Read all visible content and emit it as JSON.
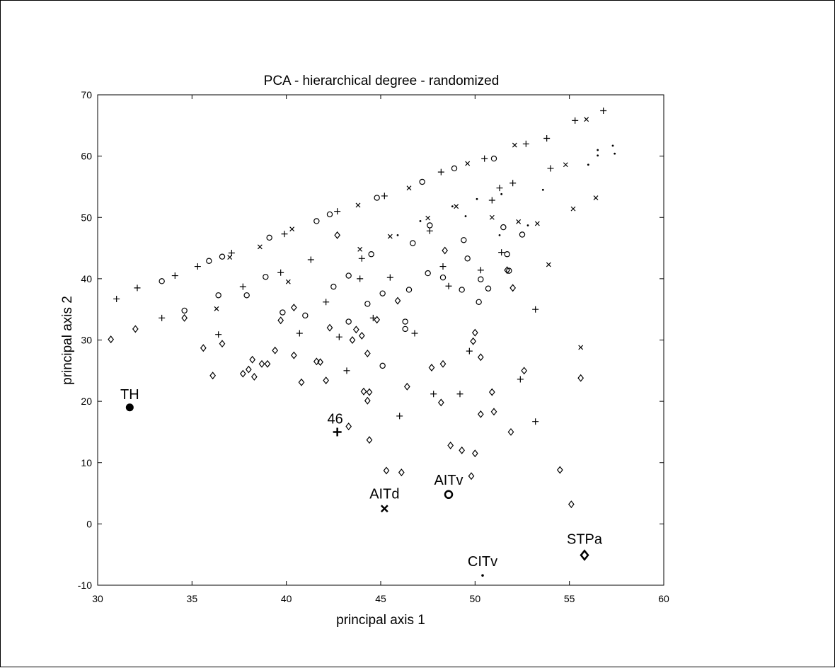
{
  "chart_data": {
    "type": "scatter",
    "title": "PCA - hierarchical degree - randomized",
    "xlabel": "principal axis 1",
    "ylabel": "principal axis 2",
    "xlim": [
      30,
      60
    ],
    "ylim": [
      -10,
      70
    ],
    "xticks": [
      30,
      35,
      40,
      45,
      50,
      55,
      60
    ],
    "yticks": [
      -10,
      0,
      10,
      20,
      30,
      40,
      50,
      60,
      70
    ],
    "xtick_labels": [
      "30",
      "35",
      "40",
      "45",
      "50",
      "55",
      "60"
    ],
    "ytick_labels": [
      "-10",
      "0",
      "10",
      "20",
      "30",
      "40",
      "50",
      "60",
      "70"
    ],
    "grid": false,
    "highlighted": [
      {
        "label": "TH",
        "x": 31.7,
        "y": 19.0,
        "marker": "dot"
      },
      {
        "label": "46",
        "x": 42.7,
        "y": 15.0,
        "marker": "plus"
      },
      {
        "label": "AITd",
        "x": 45.2,
        "y": 2.5,
        "marker": "x"
      },
      {
        "label": "AITv",
        "x": 48.6,
        "y": 4.8,
        "marker": "circle"
      },
      {
        "label": "CITv",
        "x": 50.4,
        "y": -8.4,
        "marker": "point"
      },
      {
        "label": "STPa",
        "x": 55.8,
        "y": -5.1,
        "marker": "diamond"
      }
    ],
    "series": [
      {
        "marker": "plus",
        "points": [
          [
            31.0,
            36.7
          ],
          [
            32.1,
            38.5
          ],
          [
            33.4,
            33.6
          ],
          [
            35.3,
            42.0
          ],
          [
            36.4,
            30.9
          ],
          [
            37.7,
            38.7
          ],
          [
            39.7,
            41.0
          ],
          [
            40.7,
            31.1
          ],
          [
            41.3,
            43.1
          ],
          [
            42.1,
            36.2
          ],
          [
            42.8,
            30.5
          ],
          [
            43.2,
            25.0
          ],
          [
            43.9,
            40.0
          ],
          [
            44.0,
            43.3
          ],
          [
            44.6,
            33.6
          ],
          [
            45.5,
            40.2
          ],
          [
            46.0,
            17.6
          ],
          [
            46.8,
            31.1
          ],
          [
            47.6,
            47.8
          ],
          [
            47.8,
            21.2
          ],
          [
            48.3,
            42.0
          ],
          [
            48.6,
            38.8
          ],
          [
            49.2,
            21.2
          ],
          [
            49.7,
            28.2
          ],
          [
            50.3,
            41.4
          ],
          [
            50.9,
            52.8
          ],
          [
            51.4,
            44.3
          ],
          [
            51.3,
            54.8
          ],
          [
            52.4,
            23.6
          ],
          [
            53.2,
            35.0
          ],
          [
            53.2,
            16.7
          ],
          [
            52.0,
            55.6
          ],
          [
            54.0,
            58.0
          ],
          [
            55.3,
            65.8
          ],
          [
            56.8,
            67.4
          ],
          [
            53.8,
            62.9
          ],
          [
            52.7,
            62.0
          ],
          [
            50.5,
            59.6
          ],
          [
            48.2,
            57.4
          ],
          [
            45.2,
            53.5
          ],
          [
            42.7,
            51.0
          ],
          [
            39.9,
            47.3
          ],
          [
            37.1,
            44.2
          ],
          [
            34.1,
            40.5
          ]
        ]
      },
      {
        "marker": "circle",
        "points": [
          [
            33.4,
            39.6
          ],
          [
            34.6,
            34.8
          ],
          [
            36.4,
            37.3
          ],
          [
            37.9,
            37.3
          ],
          [
            38.9,
            40.3
          ],
          [
            39.8,
            34.5
          ],
          [
            41.0,
            34.0
          ],
          [
            41.6,
            49.4
          ],
          [
            42.5,
            38.7
          ],
          [
            43.3,
            40.5
          ],
          [
            43.3,
            33.0
          ],
          [
            44.3,
            35.9
          ],
          [
            44.5,
            44.0
          ],
          [
            45.1,
            37.6
          ],
          [
            45.1,
            25.8
          ],
          [
            46.3,
            33.0
          ],
          [
            46.3,
            31.8
          ],
          [
            46.5,
            38.2
          ],
          [
            46.7,
            45.8
          ],
          [
            47.5,
            40.9
          ],
          [
            47.6,
            48.7
          ],
          [
            48.3,
            40.2
          ],
          [
            49.3,
            38.2
          ],
          [
            49.4,
            46.3
          ],
          [
            49.6,
            43.3
          ],
          [
            50.2,
            36.2
          ],
          [
            50.3,
            39.9
          ],
          [
            50.7,
            38.4
          ],
          [
            51.7,
            44.0
          ],
          [
            51.8,
            41.3
          ],
          [
            52.5,
            47.2
          ],
          [
            51.5,
            48.4
          ],
          [
            51.0,
            59.6
          ],
          [
            48.9,
            58.0
          ],
          [
            47.2,
            55.8
          ],
          [
            44.8,
            53.2
          ],
          [
            42.3,
            50.5
          ],
          [
            39.1,
            46.7
          ],
          [
            36.6,
            43.6
          ],
          [
            35.9,
            42.9
          ]
        ]
      },
      {
        "marker": "diamond",
        "points": [
          [
            30.7,
            30.1
          ],
          [
            32.0,
            31.8
          ],
          [
            34.6,
            33.6
          ],
          [
            35.6,
            28.7
          ],
          [
            36.1,
            24.2
          ],
          [
            36.6,
            29.4
          ],
          [
            37.7,
            24.5
          ],
          [
            38.0,
            25.2
          ],
          [
            38.2,
            26.8
          ],
          [
            38.3,
            24.0
          ],
          [
            38.7,
            26.1
          ],
          [
            39.0,
            26.1
          ],
          [
            39.4,
            28.3
          ],
          [
            39.7,
            33.2
          ],
          [
            40.4,
            27.5
          ],
          [
            40.8,
            23.1
          ],
          [
            41.6,
            26.5
          ],
          [
            41.8,
            26.4
          ],
          [
            42.1,
            23.4
          ],
          [
            42.3,
            32.0
          ],
          [
            43.3,
            15.9
          ],
          [
            43.5,
            30.0
          ],
          [
            43.7,
            31.7
          ],
          [
            44.0,
            30.7
          ],
          [
            44.1,
            21.6
          ],
          [
            44.3,
            27.8
          ],
          [
            44.3,
            20.1
          ],
          [
            44.4,
            21.5
          ],
          [
            44.4,
            13.7
          ],
          [
            44.8,
            33.3
          ],
          [
            45.3,
            8.7
          ],
          [
            46.1,
            8.4
          ],
          [
            46.4,
            22.4
          ],
          [
            47.7,
            25.5
          ],
          [
            48.2,
            19.8
          ],
          [
            48.3,
            26.1
          ],
          [
            48.7,
            12.8
          ],
          [
            49.3,
            12.0
          ],
          [
            49.8,
            7.8
          ],
          [
            49.9,
            29.8
          ],
          [
            50.0,
            31.2
          ],
          [
            50.0,
            11.5
          ],
          [
            50.3,
            27.2
          ],
          [
            50.3,
            17.9
          ],
          [
            50.9,
            21.5
          ],
          [
            51.0,
            18.3
          ],
          [
            51.9,
            15.0
          ],
          [
            52.0,
            38.5
          ],
          [
            52.6,
            25.0
          ],
          [
            54.5,
            8.8
          ],
          [
            55.1,
            3.2
          ],
          [
            55.6,
            23.8
          ],
          [
            51.7,
            41.4
          ],
          [
            48.4,
            44.6
          ],
          [
            45.9,
            36.4
          ],
          [
            42.7,
            47.1
          ],
          [
            40.4,
            35.3
          ]
        ]
      },
      {
        "marker": "x",
        "points": [
          [
            36.3,
            35.1
          ],
          [
            40.1,
            39.5
          ],
          [
            43.9,
            44.8
          ],
          [
            45.5,
            46.9
          ],
          [
            47.5,
            49.9
          ],
          [
            49.0,
            51.8
          ],
          [
            50.9,
            50.0
          ],
          [
            52.3,
            49.3
          ],
          [
            53.3,
            49.0
          ],
          [
            53.9,
            42.3
          ],
          [
            55.2,
            51.4
          ],
          [
            55.6,
            28.8
          ],
          [
            56.4,
            53.2
          ],
          [
            54.8,
            58.6
          ],
          [
            55.9,
            66.0
          ],
          [
            52.1,
            61.8
          ],
          [
            49.6,
            58.8
          ],
          [
            46.5,
            54.8
          ],
          [
            43.8,
            52.0
          ],
          [
            40.3,
            48.1
          ],
          [
            38.6,
            45.2
          ],
          [
            37.0,
            43.5
          ]
        ]
      },
      {
        "marker": "point",
        "points": [
          [
            49.5,
            50.2
          ],
          [
            51.3,
            47.1
          ],
          [
            52.8,
            48.7
          ],
          [
            53.6,
            54.5
          ],
          [
            56.0,
            58.6
          ],
          [
            56.5,
            60.1
          ],
          [
            57.3,
            61.7
          ],
          [
            57.4,
            60.4
          ],
          [
            56.5,
            61.0
          ],
          [
            51.4,
            53.8
          ],
          [
            50.1,
            53.0
          ],
          [
            48.8,
            51.8
          ],
          [
            47.1,
            49.4
          ],
          [
            45.9,
            47.1
          ]
        ]
      }
    ]
  }
}
